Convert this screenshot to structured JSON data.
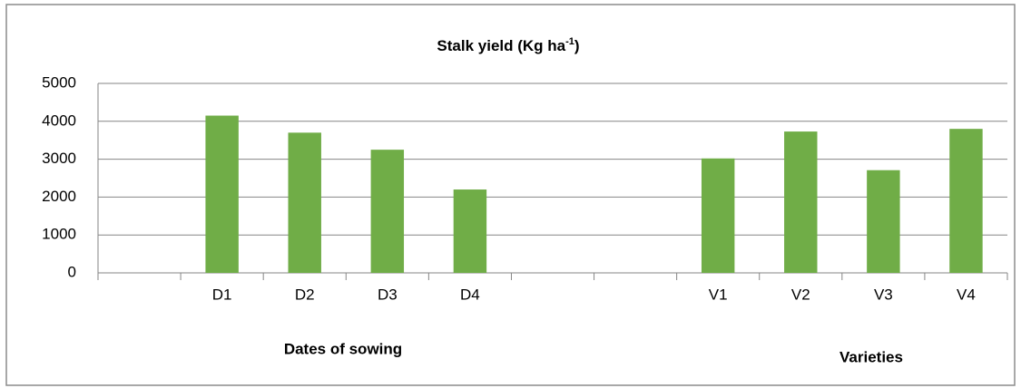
{
  "chart_data": {
    "type": "bar",
    "title_parts": [
      "Stalk yield (Kg ha",
      "-1",
      ")"
    ],
    "categories": [
      null,
      "D1",
      "D2",
      "D3",
      "D4",
      null,
      null,
      "V1",
      "V2",
      "V3",
      "V4"
    ],
    "values": [
      null,
      4150,
      3700,
      3250,
      2200,
      null,
      null,
      3020,
      3730,
      2710,
      3800
    ],
    "color": "#70ad47",
    "ylim": [
      0,
      5000
    ],
    "yticks": [
      0,
      1000,
      2000,
      3000,
      4000,
      5000
    ],
    "grid": true,
    "annotations": [
      "Dates of sowing",
      "Varieties"
    ]
  }
}
